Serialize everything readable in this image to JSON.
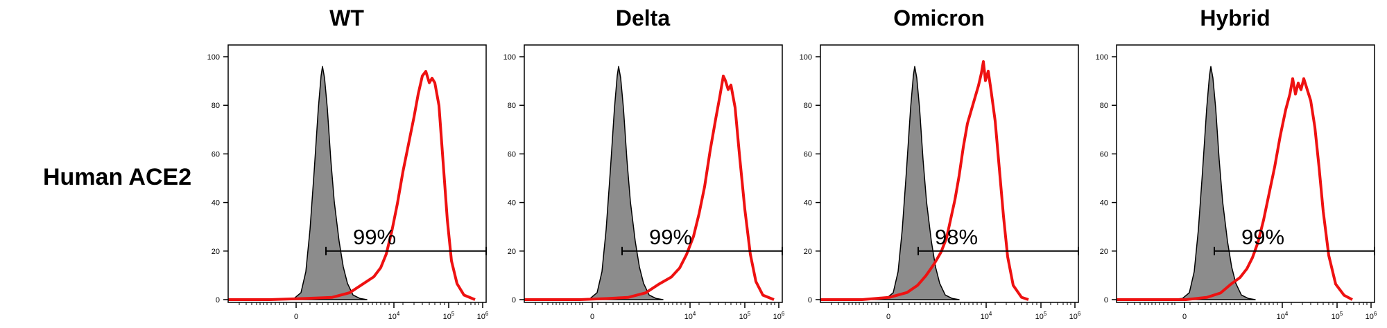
{
  "row_label": "Human ACE2",
  "colors": {
    "control_fill": "#8c8c8c",
    "control_stroke": "#000000",
    "sample_line": "#ee1111"
  },
  "chart_data": [
    {
      "type": "area",
      "title": "WT",
      "gate_label": "99%",
      "gate_value_percent": 99,
      "xlabel": "",
      "ylabel": "",
      "ylim": [
        0,
        100
      ],
      "yticks": [
        0,
        20,
        40,
        60,
        80,
        100
      ],
      "xticks": [
        "0",
        "10^4",
        "10^5",
        "10^6"
      ],
      "x_scale": "biexponential",
      "series": [
        {
          "kind": "control",
          "peak_y": 96
        },
        {
          "kind": "sample",
          "peak_y": 94
        }
      ]
    },
    {
      "type": "area",
      "title": "Delta",
      "gate_label": "99%",
      "gate_value_percent": 99,
      "xlabel": "",
      "ylabel": "",
      "ylim": [
        0,
        100
      ],
      "yticks": [
        0,
        20,
        40,
        60,
        80,
        100
      ],
      "xticks": [
        "0",
        "10^4",
        "10^5",
        "10^6"
      ],
      "x_scale": "biexponential",
      "series": [
        {
          "kind": "control",
          "peak_y": 96
        },
        {
          "kind": "sample",
          "peak_y": 93
        }
      ]
    },
    {
      "type": "area",
      "title": "Omicron",
      "gate_label": "98%",
      "gate_value_percent": 98,
      "xlabel": "",
      "ylabel": "",
      "ylim": [
        0,
        100
      ],
      "yticks": [
        0,
        20,
        40,
        60,
        80,
        100
      ],
      "xticks": [
        "0",
        "10^4",
        "10^5",
        "10^6"
      ],
      "x_scale": "biexponential",
      "series": [
        {
          "kind": "control",
          "peak_y": 96
        },
        {
          "kind": "sample",
          "peak_y": 98
        }
      ]
    },
    {
      "type": "area",
      "title": "Hybrid",
      "gate_label": "99%",
      "gate_value_percent": 99,
      "xlabel": "",
      "ylabel": "",
      "ylim": [
        0,
        100
      ],
      "yticks": [
        0,
        20,
        40,
        60,
        80,
        100
      ],
      "xticks": [
        "0",
        "10^4",
        "10^5",
        "10^6"
      ],
      "x_scale": "biexponential",
      "series": [
        {
          "kind": "control",
          "peak_y": 96
        },
        {
          "kind": "sample",
          "peak_y": 91
        }
      ]
    }
  ]
}
